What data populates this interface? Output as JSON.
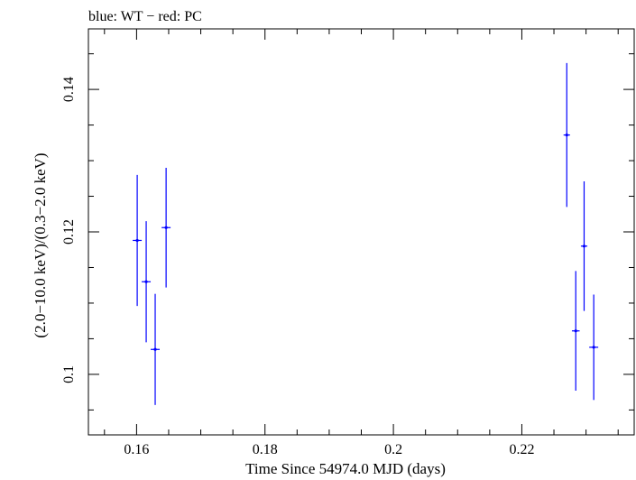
{
  "chart_data": {
    "type": "scatter",
    "title": "blue: WT − red: PC",
    "xlabel": "Time Since 54974.0 MJD (days)",
    "ylabel": "(2.0−10.0 keV)/(0.3−2.0 keV)",
    "xlim": [
      0.1525,
      0.2375
    ],
    "ylim": [
      0.0915,
      0.1485
    ],
    "x_ticks": [
      {
        "value": 0.16,
        "label": "0.16"
      },
      {
        "value": 0.18,
        "label": "0.18"
      },
      {
        "value": 0.2,
        "label": "0.2"
      },
      {
        "value": 0.22,
        "label": "0.22"
      }
    ],
    "y_ticks": [
      {
        "value": 0.1,
        "label": "0.1"
      },
      {
        "value": 0.12,
        "label": "0.12"
      },
      {
        "value": 0.14,
        "label": "0.14"
      }
    ],
    "x_minor_step": 0.005,
    "y_minor_step": 0.005,
    "grid": false,
    "series": [
      {
        "color": "#0000ff",
        "points": [
          {
            "x": 0.1601,
            "y": 0.1188,
            "xerr": 0.0007,
            "yerr_low": 0.0092,
            "yerr_high": 0.0092
          },
          {
            "x": 0.1615,
            "y": 0.113,
            "xerr": 0.0007,
            "yerr_low": 0.0085,
            "yerr_high": 0.0085
          },
          {
            "x": 0.1629,
            "y": 0.1035,
            "xerr": 0.0007,
            "yerr_low": 0.0078,
            "yerr_high": 0.0078
          },
          {
            "x": 0.1646,
            "y": 0.1206,
            "xerr": 0.0007,
            "yerr_low": 0.0084,
            "yerr_high": 0.0084
          },
          {
            "x": 0.227,
            "y": 0.1336,
            "xerr": 0.0005,
            "yerr_low": 0.0101,
            "yerr_high": 0.0101
          },
          {
            "x": 0.2284,
            "y": 0.1061,
            "xerr": 0.0006,
            "yerr_low": 0.0084,
            "yerr_high": 0.0084
          },
          {
            "x": 0.2297,
            "y": 0.118,
            "xerr": 0.0005,
            "yerr_low": 0.0091,
            "yerr_high": 0.0091
          },
          {
            "x": 0.2312,
            "y": 0.1038,
            "xerr": 0.0007,
            "yerr_low": 0.0074,
            "yerr_high": 0.0074
          }
        ]
      }
    ]
  }
}
